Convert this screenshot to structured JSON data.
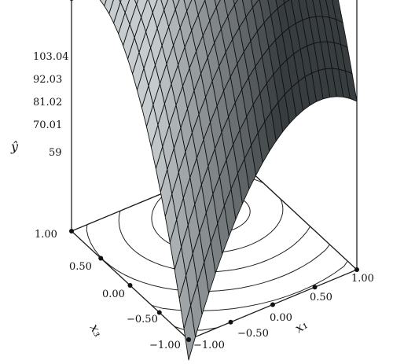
{
  "chart_data": {
    "type": "surface3d",
    "title": "",
    "xlabel": "x₁",
    "ylabel": "x₃",
    "zlabel": "ŷ",
    "x_ticks": [
      "−1.00",
      "−0.50",
      "0.00",
      "0.50",
      "1.00"
    ],
    "y_ticks": [
      "−1.00",
      "−0.50",
      "0.00",
      "0.50",
      "1.00"
    ],
    "z_ticks": [
      "59",
      "70.01",
      "81.02",
      "92.03",
      "103.04"
    ],
    "xlim": [
      -1,
      1
    ],
    "ylim": [
      -1,
      1
    ],
    "zlim": [
      59,
      103.04
    ],
    "surface_grid_lines": 25,
    "contour_lines": 6,
    "surface_color": "#8a8f90",
    "grid_color": "#111111"
  }
}
